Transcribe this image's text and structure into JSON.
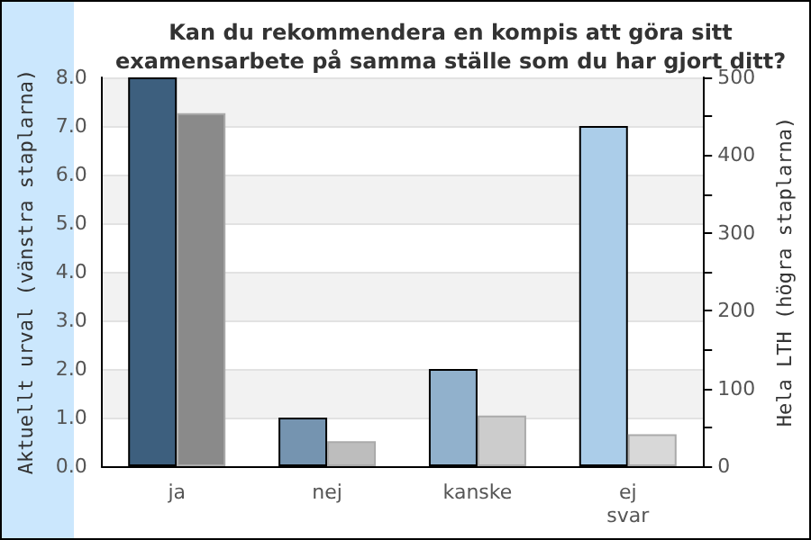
{
  "chart_data": {
    "type": "bar",
    "title": "Kan du rekommendera en kompis att göra sitt\nexamensarbete på samma ställe som du har gjort ditt?",
    "categories": [
      "ja",
      "nej",
      "kanske",
      "ej\nsvar"
    ],
    "ylabel": "Aktuellt urval (vänstra staplarna)",
    "y2label": "Hela LTH (högra staplarna)",
    "series": [
      {
        "colors": [
          "#3d5f7e",
          "#7594b0",
          "#91b1cc",
          "#abcde9"
        ],
        "values": [
          8,
          1,
          2,
          7
        ]
      },
      {
        "colors": [
          "#8a8a8a",
          "#bdbdbd",
          "#cccccc",
          "#d8d8d8"
        ],
        "values": [
          454,
          32,
          65,
          41
        ],
        "axis": "y2"
      }
    ],
    "ylim": [
      0,
      8
    ],
    "yticks": [
      {
        "value": 0,
        "label": "0.0"
      },
      {
        "value": 1,
        "label": "1.0"
      },
      {
        "value": 2,
        "label": "2.0"
      },
      {
        "value": 3,
        "label": "3.0"
      },
      {
        "value": 4,
        "label": "4.0"
      },
      {
        "value": 5,
        "label": "5.0"
      },
      {
        "value": 6,
        "label": "6.0"
      },
      {
        "value": 7,
        "label": "7.0"
      },
      {
        "value": 8,
        "label": "8.0"
      }
    ],
    "y2lim": [
      0,
      500
    ],
    "y2ticks": [
      0,
      {
        "value": 50,
        "label": null
      },
      100,
      {
        "value": 150,
        "label": null
      },
      200,
      {
        "value": 250,
        "label": null
      },
      300,
      {
        "value": 350,
        "label": null
      },
      400,
      {
        "value": 450,
        "label": null
      },
      500
    ],
    "grid": "y"
  }
}
